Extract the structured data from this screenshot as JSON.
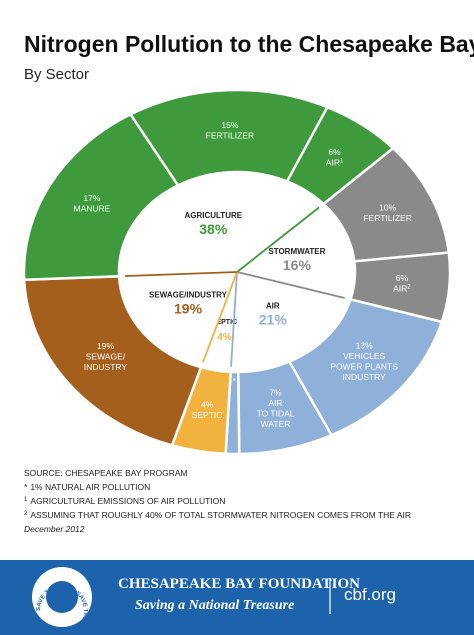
{
  "title": "Nitrogen Pollution to the Chesapeake Bay",
  "subtitle": "By Sector",
  "chart_data": {
    "type": "nested-pie",
    "inner": {
      "categories": [
        "AGRICULTURE",
        "STORMWATER",
        "AIR",
        "SEPTIC",
        "SEWAGE/INDUSTRY"
      ],
      "values": [
        38,
        16,
        21,
        4,
        19
      ],
      "value_labels": [
        "38%",
        "16%",
        "21%",
        "4%",
        "19%"
      ],
      "colors": [
        "#3e9a3c",
        "#8a8a8a",
        "#8fb0d8",
        "#f2b23e",
        "#a55f1c"
      ]
    },
    "outer": {
      "categories": [
        [
          "FERTILIZER"
        ],
        [
          "AIR"
        ],
        [
          "FERTILIZER"
        ],
        [
          "AIR"
        ],
        [
          "VEHICLES",
          "POWER PLANTS",
          "INDUSTRY"
        ],
        [
          "AIR",
          "TO TIDAL",
          "WATER"
        ],
        null,
        [
          "SEPTIC"
        ],
        [
          "SEWAGE/",
          "INDUSTRY"
        ],
        [
          "MANURE"
        ]
      ],
      "values": [
        15,
        6,
        10,
        6,
        13,
        7,
        1,
        4,
        19,
        17
      ],
      "value_labels": [
        "15%",
        "6%",
        "10%",
        "6%",
        "13%",
        "7%",
        null,
        "4%",
        "19%",
        "17%"
      ],
      "markers": [
        null,
        "1",
        null,
        "2",
        null,
        null,
        "*",
        null,
        null,
        null
      ],
      "colors": [
        "#3e9a3c",
        "#3e9a3c",
        "#8a8a8a",
        "#8a8a8a",
        "#8fb0d8",
        "#8fb0d8",
        "#8fb0d8",
        "#f2b23e",
        "#a55f1c",
        "#3e9a3c"
      ]
    }
  },
  "notes": {
    "source": "SOURCE: CHESAPEAKE BAY PROGRAM",
    "items": [
      {
        "marker": "*",
        "text": "1% NATURAL AIR POLLUTION"
      },
      {
        "marker": "1",
        "text": "AGRICULTURAL EMISSIONS OF AIR POLLUTION"
      },
      {
        "marker": "2",
        "text": "ASSUMING THAT ROUGHLY 40% OF TOTAL STORMWATER NITROGEN COMES FROM THE AIR"
      }
    ],
    "date": "December 2012"
  },
  "footer": {
    "organization": "CHESAPEAKE BAY FOUNDATION",
    "tagline": "Saving a National Treasure",
    "url": "cbf.org",
    "seal": "SAVE THE BAY • SAVE THE BAY •"
  }
}
